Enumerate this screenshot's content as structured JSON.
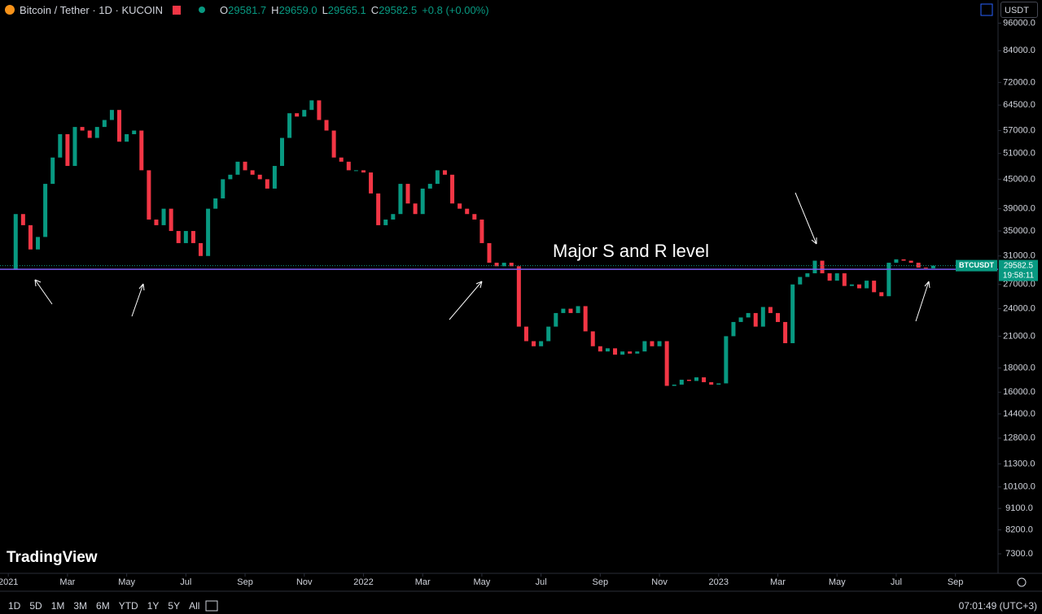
{
  "header": {
    "symbol": "Bitcoin / Tether · 1D · KUCOIN",
    "ohlc": [
      {
        "label": "O",
        "value": "29581.7"
      },
      {
        "label": "H",
        "value": "29659.0"
      },
      {
        "label": "L",
        "value": "29565.1"
      },
      {
        "label": "C",
        "value": "29582.5"
      }
    ],
    "change": "+0.8 (+0.00%)",
    "currency": "USDT"
  },
  "chart_data": {
    "type": "candlestick",
    "annotation": "Major S and R level",
    "symbol_tag": "BTCUSDT",
    "last_price": 29582.5,
    "countdown": "19:58:11",
    "support_level": 29060,
    "up_color": "#089981",
    "down_color": "#f23645",
    "level_color": "#7b5cf0",
    "log_scale": true,
    "x": [
      0,
      0.25,
      0.5,
      0.75,
      1,
      1.25,
      1.5,
      1.75,
      2,
      2.25,
      2.5,
      2.75,
      3,
      3.25,
      3.5,
      3.75,
      4,
      4.25,
      4.5,
      4.75,
      5,
      5.25,
      5.5,
      5.75,
      6,
      6.25,
      6.5,
      6.75,
      7,
      7.25,
      7.5,
      7.75,
      8,
      8.25,
      8.5,
      8.75,
      9,
      9.25,
      9.5,
      9.75,
      10,
      10.25,
      10.5,
      10.75,
      11,
      11.25,
      11.5,
      11.75,
      12,
      12.25,
      12.5,
      12.75,
      13,
      13.25,
      13.5,
      13.75,
      14,
      14.25,
      14.5,
      14.75,
      15,
      15.25,
      15.5,
      15.75,
      16,
      16.25,
      16.5,
      16.75,
      17,
      17.25,
      17.5,
      17.75,
      18,
      18.25,
      18.5,
      18.75,
      19,
      19.25,
      19.5,
      19.75,
      20,
      20.25,
      20.5,
      20.75,
      21,
      21.25,
      21.5,
      21.75,
      22,
      22.25,
      22.5,
      22.75,
      23,
      23.25,
      23.5,
      23.75,
      24,
      24.25,
      24.5,
      24.75,
      25,
      25.25,
      25.5,
      25.75,
      26,
      26.25,
      26.5,
      26.75,
      27,
      27.25,
      27.5,
      27.75,
      28,
      28.25,
      28.5,
      28.75,
      29,
      29.25,
      29.5,
      29.75,
      30,
      30.25,
      30.5,
      30.75,
      31,
      31.25
    ],
    "values": [
      29000,
      38000,
      36000,
      32000,
      34000,
      44000,
      50000,
      56000,
      48000,
      58000,
      57000,
      55000,
      58000,
      60000,
      63000,
      54000,
      56000,
      57000,
      47000,
      37000,
      36000,
      39000,
      35000,
      33000,
      35000,
      33000,
      31000,
      39000,
      41000,
      45000,
      46000,
      49000,
      47000,
      46000,
      45000,
      43000,
      48000,
      55000,
      62000,
      61000,
      63000,
      66000,
      60000,
      57000,
      50000,
      49000,
      47000,
      47000,
      46500,
      42000,
      36000,
      37000,
      38000,
      44000,
      40000,
      38000,
      43000,
      44000,
      47000,
      46000,
      40000,
      39000,
      38000,
      37000,
      33000,
      30000,
      29500,
      30000,
      29500,
      22000,
      20500,
      20000,
      20500,
      22000,
      23500,
      24000,
      23500,
      24300,
      21500,
      20000,
      19500,
      19800,
      19200,
      19500,
      19300,
      19500,
      20500,
      20000,
      20500,
      16500,
      16600,
      17000,
      16900,
      17200,
      16800,
      16600,
      16700,
      21000,
      22500,
      23000,
      23500,
      22000,
      24200,
      23500,
      22500,
      20300,
      27000,
      28000,
      28500,
      30300,
      28500,
      27500,
      28500,
      26800,
      27000,
      26500,
      27500,
      26000,
      25500,
      30000,
      30500,
      30300,
      30000,
      29300,
      29200,
      29582.5
    ],
    "xlim": [
      -0.28,
      33.44
    ],
    "xticks": [
      {
        "value": 0,
        "label": "2021"
      },
      {
        "value": 2,
        "label": "Mar"
      },
      {
        "value": 4,
        "label": "May"
      },
      {
        "value": 6,
        "label": "Jul"
      },
      {
        "value": 8,
        "label": "Sep"
      },
      {
        "value": 10,
        "label": "Nov"
      },
      {
        "value": 12,
        "label": "2022"
      },
      {
        "value": 14,
        "label": "Mar"
      },
      {
        "value": 16,
        "label": "May"
      },
      {
        "value": 18,
        "label": "Jul"
      },
      {
        "value": 20,
        "label": "Sep"
      },
      {
        "value": 22,
        "label": "Nov"
      },
      {
        "value": 24,
        "label": "2023"
      },
      {
        "value": 26,
        "label": "Mar"
      },
      {
        "value": 28,
        "label": "May"
      },
      {
        "value": 30,
        "label": "Jul"
      },
      {
        "value": 32,
        "label": "Sep"
      }
    ],
    "ylim": [
      6640,
      98500
    ],
    "yticks": [
      {
        "value": 96000,
        "label": "96000.0"
      },
      {
        "value": 84000,
        "label": "84000.0"
      },
      {
        "value": 72000,
        "label": "72000.0"
      },
      {
        "value": 64500,
        "label": "64500.0"
      },
      {
        "value": 57000,
        "label": "57000.0"
      },
      {
        "value": 51000,
        "label": "51000.0"
      },
      {
        "value": 45000,
        "label": "45000.0"
      },
      {
        "value": 39000,
        "label": "39000.0"
      },
      {
        "value": 35000,
        "label": "35000.0"
      },
      {
        "value": 31000,
        "label": "31000.0"
      },
      {
        "value": 27000,
        "label": "27000.0"
      },
      {
        "value": 24000,
        "label": "24000.0"
      },
      {
        "value": 21000,
        "label": "21000.0"
      },
      {
        "value": 18000,
        "label": "18000.0"
      },
      {
        "value": 16000,
        "label": "16000.0"
      },
      {
        "value": 14400,
        "label": "14400.0"
      },
      {
        "value": 12800,
        "label": "12800.0"
      },
      {
        "value": 11300,
        "label": "11300.0"
      },
      {
        "value": 10100,
        "label": "10100.0"
      },
      {
        "value": 9100,
        "label": "9100.0"
      },
      {
        "value": 8200,
        "label": "8200.0"
      },
      {
        "value": 7300,
        "label": "7300.0"
      }
    ]
  },
  "logo": "TradingView",
  "toolbar": {
    "ranges": [
      "1D",
      "5D",
      "1M",
      "3M",
      "6M",
      "YTD",
      "1Y",
      "5Y",
      "All"
    ],
    "clock": "07:01:49 (UTC+3)"
  }
}
